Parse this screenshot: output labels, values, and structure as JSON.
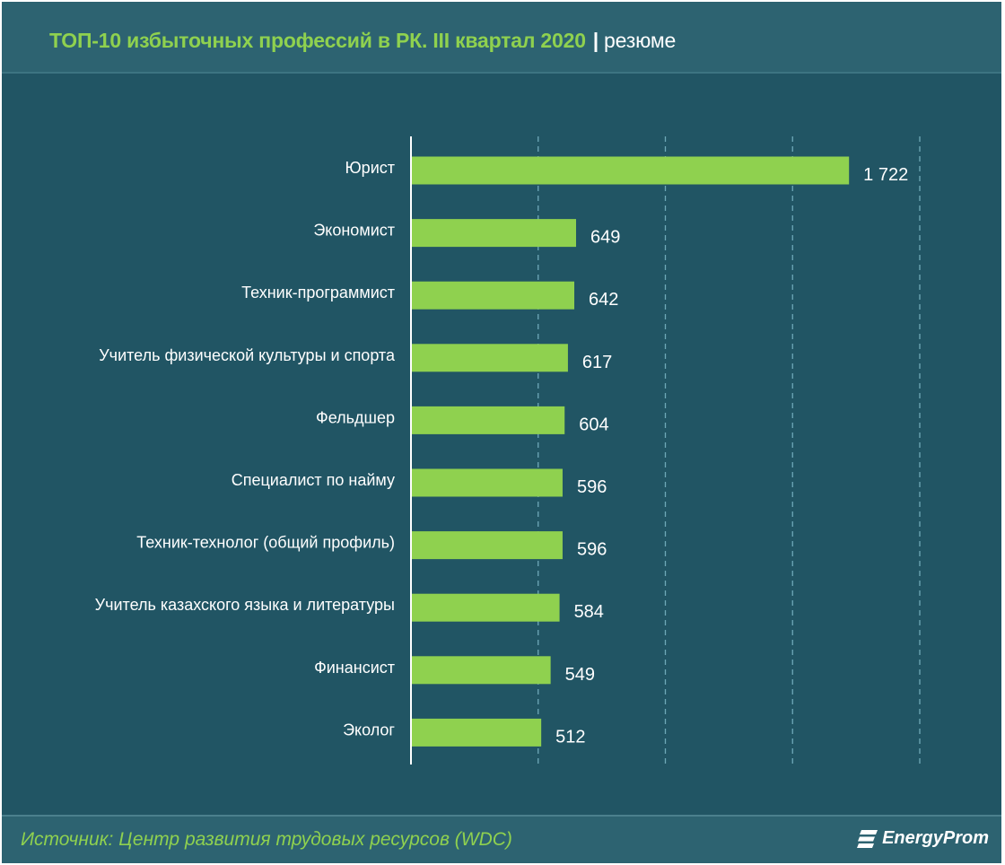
{
  "header": {
    "title": "ТОП-10 избыточных профессий в РК.  III квартал 2020",
    "separator": "|",
    "unit": "резюме"
  },
  "footer": {
    "source": "Источник: Центр развития трудовых ресурсов (WDC)",
    "brand": "EnergyProm",
    "brand_icon": "energyprom-logo-icon"
  },
  "colors": {
    "background": "#215564",
    "header": "#2d6371",
    "bar": "#8fd14f",
    "accent": "#8fd14f",
    "text": "#ffffff",
    "grid": "#6fa9b8"
  },
  "chart_data": {
    "type": "bar",
    "orientation": "horizontal",
    "title": "ТОП-10 избыточных профессий в РК.  III квартал 2020",
    "xlabel": "",
    "ylabel": "",
    "xlim": [
      0,
      2000
    ],
    "grid": true,
    "categories": [
      "Юрист",
      "Экономист",
      "Техник-программист",
      "Учитель физической культуры и спорта",
      "Фельдшер",
      "Специалист по найму",
      "Техник-технолог (общий профиль)",
      "Учитель казахского языка и литературы",
      "Финансист",
      "Эколог"
    ],
    "values": [
      1722,
      649,
      642,
      617,
      604,
      596,
      596,
      584,
      549,
      512
    ],
    "value_labels": [
      "1 722",
      "649",
      "642",
      "617",
      "604",
      "596",
      "596",
      "584",
      "549",
      "512"
    ]
  }
}
